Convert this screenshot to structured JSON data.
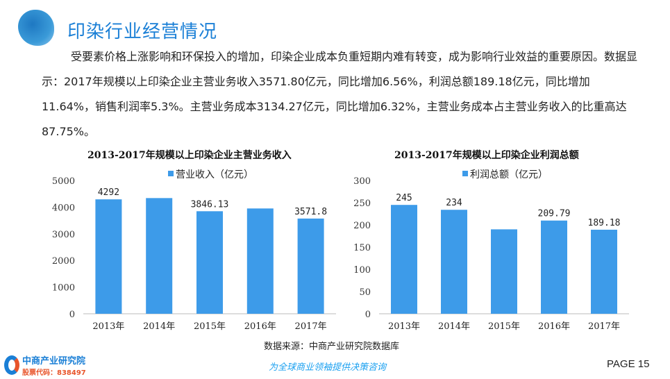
{
  "header": {
    "title": "印染行业经营情况"
  },
  "paragraph": "受要素价格上涨影响和环保投入的增加，印染企业成本负重短期内难有转变，成为影响行业效益的重要原因。数据显示：2017年规模以上印染企业主营业务收入3571.80亿元，同比增加6.56%，利润总额189.18亿元，同比增加11.64%，销售利润率5.3%。主营业务成本3134.27亿元，同比增加6.32%，主营业务成本占主营业务收入的比重高达87.75%。",
  "chart_data": [
    {
      "type": "bar",
      "title": "2013-2017年规模以上印染企业主营业务收入",
      "legend": "营业收入（亿元）",
      "categories": [
        "2013年",
        "2014年",
        "2015年",
        "2016年",
        "2017年"
      ],
      "values": [
        4292,
        4340,
        3846.13,
        3950,
        3571.8
      ],
      "labels": [
        "4292",
        "",
        "3846.13",
        "",
        "3571.8"
      ],
      "yticks": [
        "0",
        "1000",
        "2000",
        "3000",
        "4000",
        "5000"
      ],
      "ylim": [
        0,
        5000
      ],
      "color": "#3d9be9"
    },
    {
      "type": "bar",
      "title": "2013-2017年规模以上印染企业利润总额",
      "legend": "利润总额（亿元）",
      "categories": [
        "2013年",
        "2014年",
        "2015年",
        "2016年",
        "2017年"
      ],
      "values": [
        245,
        234,
        190,
        209.79,
        189.18
      ],
      "labels": [
        "245",
        "234",
        "",
        "209.79",
        "189.18"
      ],
      "yticks": [
        "0",
        "50",
        "100",
        "150",
        "200",
        "250",
        "300"
      ],
      "ylim": [
        0,
        300
      ],
      "color": "#3d9be9"
    }
  ],
  "footer": {
    "source": "数据来源：中商产业研究院数据库",
    "logo_name": "中商产业研究院",
    "logo_code": "股票代码：838497",
    "slogan": "为全球商业领袖提供决策咨询",
    "page": "PAGE  15"
  }
}
